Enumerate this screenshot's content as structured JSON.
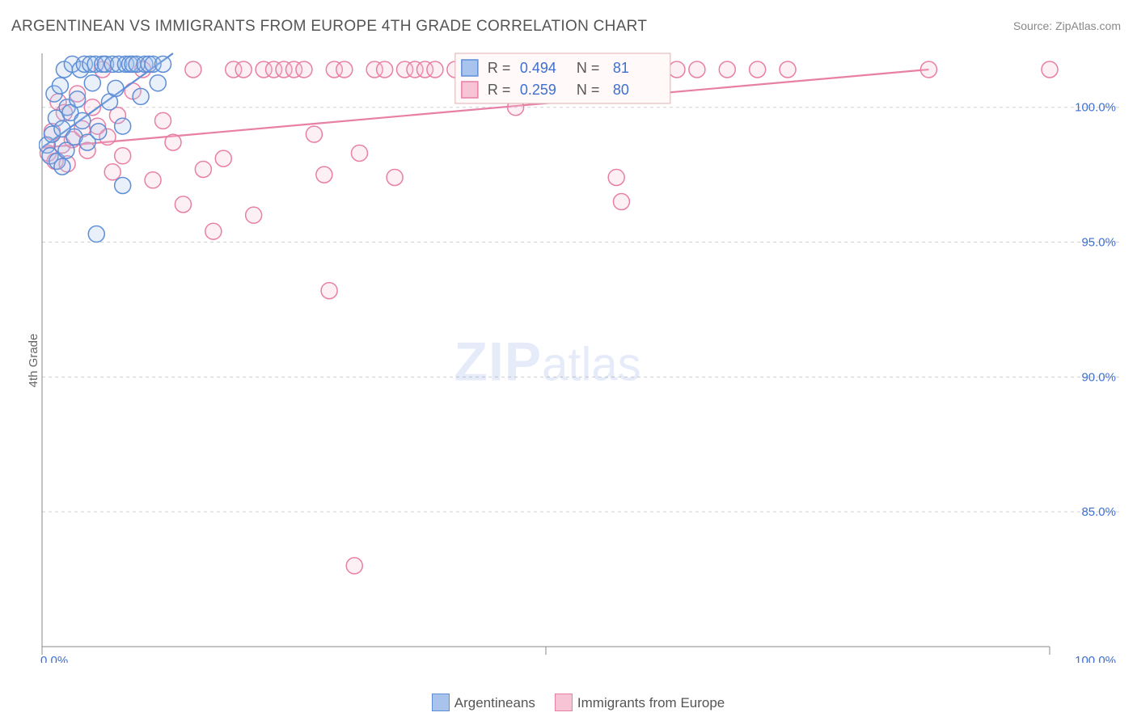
{
  "title": "ARGENTINEAN VS IMMIGRANTS FROM EUROPE 4TH GRADE CORRELATION CHART",
  "source_label": "Source: ZipAtlas.com",
  "ylabel": "4th Grade",
  "watermark": {
    "zip": "ZIP",
    "atlas": "atlas"
  },
  "chart": {
    "type": "scatter",
    "xlim": [
      0,
      100
    ],
    "ylim": [
      80,
      102
    ],
    "xtick_positions": [
      0,
      50,
      100
    ],
    "xtick_labels": [
      "0.0%",
      "",
      "100.0%"
    ],
    "ytick_positions": [
      85,
      90,
      95,
      100
    ],
    "ytick_labels": [
      "85.0%",
      "90.0%",
      "95.0%",
      "100.0%"
    ],
    "background_color": "#ffffff",
    "grid_color": "#d0d0d0",
    "axis_color": "#888888",
    "tick_label_color": "#3d6fd1",
    "marker_radius": 10,
    "marker_stroke_width": 1.5,
    "marker_fill_opacity": 0.25,
    "series": [
      {
        "name": "Argentineans",
        "color_stroke": "#5e8ed6",
        "color_fill": "#a8c3ec",
        "trend": {
          "x1": 0,
          "y1": 98.5,
          "x2": 13,
          "y2": 102
        },
        "points": [
          [
            0.5,
            98.6
          ],
          [
            0.8,
            98.2
          ],
          [
            1.0,
            99.0
          ],
          [
            1.2,
            100.5
          ],
          [
            1.4,
            99.6
          ],
          [
            1.5,
            98.0
          ],
          [
            1.8,
            100.8
          ],
          [
            2.0,
            99.2
          ],
          [
            2.2,
            101.4
          ],
          [
            2.4,
            98.4
          ],
          [
            2.5,
            100.0
          ],
          [
            2.8,
            99.8
          ],
          [
            3.0,
            101.6
          ],
          [
            3.2,
            98.9
          ],
          [
            3.5,
            100.3
          ],
          [
            3.8,
            101.4
          ],
          [
            4.0,
            99.5
          ],
          [
            4.2,
            101.6
          ],
          [
            4.5,
            98.7
          ],
          [
            4.8,
            101.6
          ],
          [
            5.0,
            100.9
          ],
          [
            5.3,
            101.6
          ],
          [
            5.6,
            99.1
          ],
          [
            6.0,
            101.6
          ],
          [
            6.3,
            101.6
          ],
          [
            6.7,
            100.2
          ],
          [
            7.0,
            101.6
          ],
          [
            7.3,
            100.7
          ],
          [
            7.6,
            101.6
          ],
          [
            8.0,
            99.3
          ],
          [
            8.3,
            101.6
          ],
          [
            8.7,
            101.6
          ],
          [
            9.0,
            101.6
          ],
          [
            9.4,
            101.6
          ],
          [
            9.8,
            100.4
          ],
          [
            10.2,
            101.6
          ],
          [
            10.6,
            101.6
          ],
          [
            11.0,
            101.6
          ],
          [
            11.5,
            100.9
          ],
          [
            12.0,
            101.6
          ],
          [
            5.4,
            95.3
          ],
          [
            8.0,
            97.1
          ],
          [
            2.0,
            97.8
          ]
        ]
      },
      {
        "name": "Immigrants from Europe",
        "color_stroke": "#e87fa5",
        "color_fill": "#f6c4d5",
        "trend": {
          "x1": 0,
          "y1": 98.5,
          "x2": 88,
          "y2": 101.4
        },
        "points": [
          [
            0.6,
            98.3
          ],
          [
            1.0,
            99.1
          ],
          [
            1.3,
            98.0
          ],
          [
            1.6,
            100.2
          ],
          [
            2.0,
            98.6
          ],
          [
            2.2,
            99.8
          ],
          [
            2.5,
            97.9
          ],
          [
            3.0,
            98.8
          ],
          [
            3.5,
            100.5
          ],
          [
            4.0,
            99.2
          ],
          [
            4.5,
            98.4
          ],
          [
            5.0,
            100.0
          ],
          [
            5.5,
            99.3
          ],
          [
            6.0,
            101.4
          ],
          [
            6.5,
            98.9
          ],
          [
            7.0,
            97.6
          ],
          [
            7.5,
            99.7
          ],
          [
            8.0,
            98.2
          ],
          [
            9.0,
            100.6
          ],
          [
            10.0,
            101.4
          ],
          [
            11.0,
            97.3
          ],
          [
            12.0,
            99.5
          ],
          [
            13.0,
            98.7
          ],
          [
            14.0,
            96.4
          ],
          [
            15.0,
            101.4
          ],
          [
            16.0,
            97.7
          ],
          [
            17.0,
            95.4
          ],
          [
            18.0,
            98.1
          ],
          [
            19.0,
            101.4
          ],
          [
            20.0,
            101.4
          ],
          [
            21.0,
            96.0
          ],
          [
            22.0,
            101.4
          ],
          [
            23.0,
            101.4
          ],
          [
            24.0,
            101.4
          ],
          [
            25.0,
            101.4
          ],
          [
            26.0,
            101.4
          ],
          [
            27.0,
            99.0
          ],
          [
            28.0,
            97.5
          ],
          [
            29.0,
            101.4
          ],
          [
            28.5,
            93.2
          ],
          [
            30.0,
            101.4
          ],
          [
            31.0,
            83.0
          ],
          [
            31.5,
            98.3
          ],
          [
            33.0,
            101.4
          ],
          [
            34.0,
            101.4
          ],
          [
            35.0,
            97.4
          ],
          [
            36.0,
            101.4
          ],
          [
            37.0,
            101.4
          ],
          [
            38.0,
            101.4
          ],
          [
            39.0,
            101.4
          ],
          [
            41.0,
            101.4
          ],
          [
            43.0,
            101.4
          ],
          [
            45.0,
            101.4
          ],
          [
            47.0,
            101.4
          ],
          [
            49.0,
            101.4
          ],
          [
            47.0,
            100.0
          ],
          [
            51.0,
            101.4
          ],
          [
            53.0,
            101.4
          ],
          [
            55.0,
            101.4
          ],
          [
            57.0,
            97.4
          ],
          [
            57.5,
            96.5
          ],
          [
            60.0,
            101.4
          ],
          [
            63.0,
            101.4
          ],
          [
            65.0,
            101.4
          ],
          [
            68.0,
            101.4
          ],
          [
            71.0,
            101.4
          ],
          [
            74.0,
            101.4
          ],
          [
            88.0,
            101.4
          ],
          [
            100.0,
            101.4
          ]
        ]
      }
    ],
    "stat_box": {
      "x": 41,
      "width_pct": 20,
      "border_color": "#ddb0b0",
      "bg_color": "#fff9f9",
      "rows": [
        {
          "swatch_stroke": "#5e8ed6",
          "swatch_fill": "#a8c3ec",
          "r_label": "R =",
          "r_value": "0.494",
          "n_label": "N =",
          "n_value": "81",
          "value_color": "#3d6fd1"
        },
        {
          "swatch_stroke": "#e87fa5",
          "swatch_fill": "#f6c4d5",
          "r_label": "R =",
          "r_value": "0.259",
          "n_label": "N =",
          "n_value": "80",
          "value_color": "#3d6fd1"
        }
      ]
    }
  },
  "bottom_legend": [
    {
      "swatch_stroke": "#5e8ed6",
      "swatch_fill": "#a8c3ec",
      "label": "Argentineans"
    },
    {
      "swatch_stroke": "#e87fa5",
      "swatch_fill": "#f6c4d5",
      "label": "Immigrants from Europe"
    }
  ]
}
